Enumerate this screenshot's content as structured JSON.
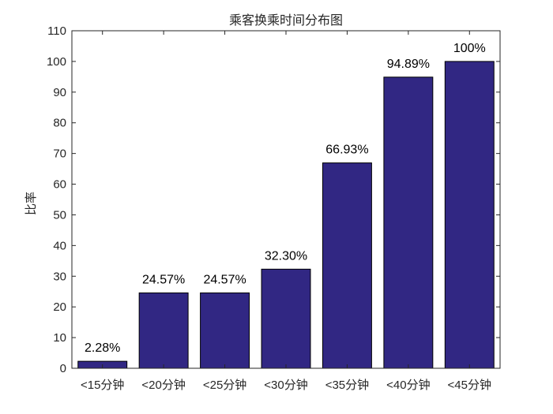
{
  "chart_data": {
    "type": "bar",
    "title": "乘客换乘时间分布图",
    "xlabel": "",
    "ylabel": "比率",
    "categories": [
      "<15分钟",
      "<20分钟",
      "<25分钟",
      "<30分钟",
      "<35分钟",
      "<40分钟",
      "<45分钟"
    ],
    "values": [
      2.28,
      24.57,
      24.57,
      32.3,
      66.93,
      94.89,
      100
    ],
    "data_labels": [
      "2.28%",
      "24.57%",
      "24.57%",
      "32.30%",
      "66.93%",
      "94.89%",
      "100%"
    ],
    "ylim": [
      0,
      110
    ],
    "yticks": [
      0,
      10,
      20,
      30,
      40,
      50,
      60,
      70,
      80,
      90,
      100,
      110
    ],
    "grid": false,
    "bar_color": "#312783",
    "bar_edge_color": "#000000"
  }
}
